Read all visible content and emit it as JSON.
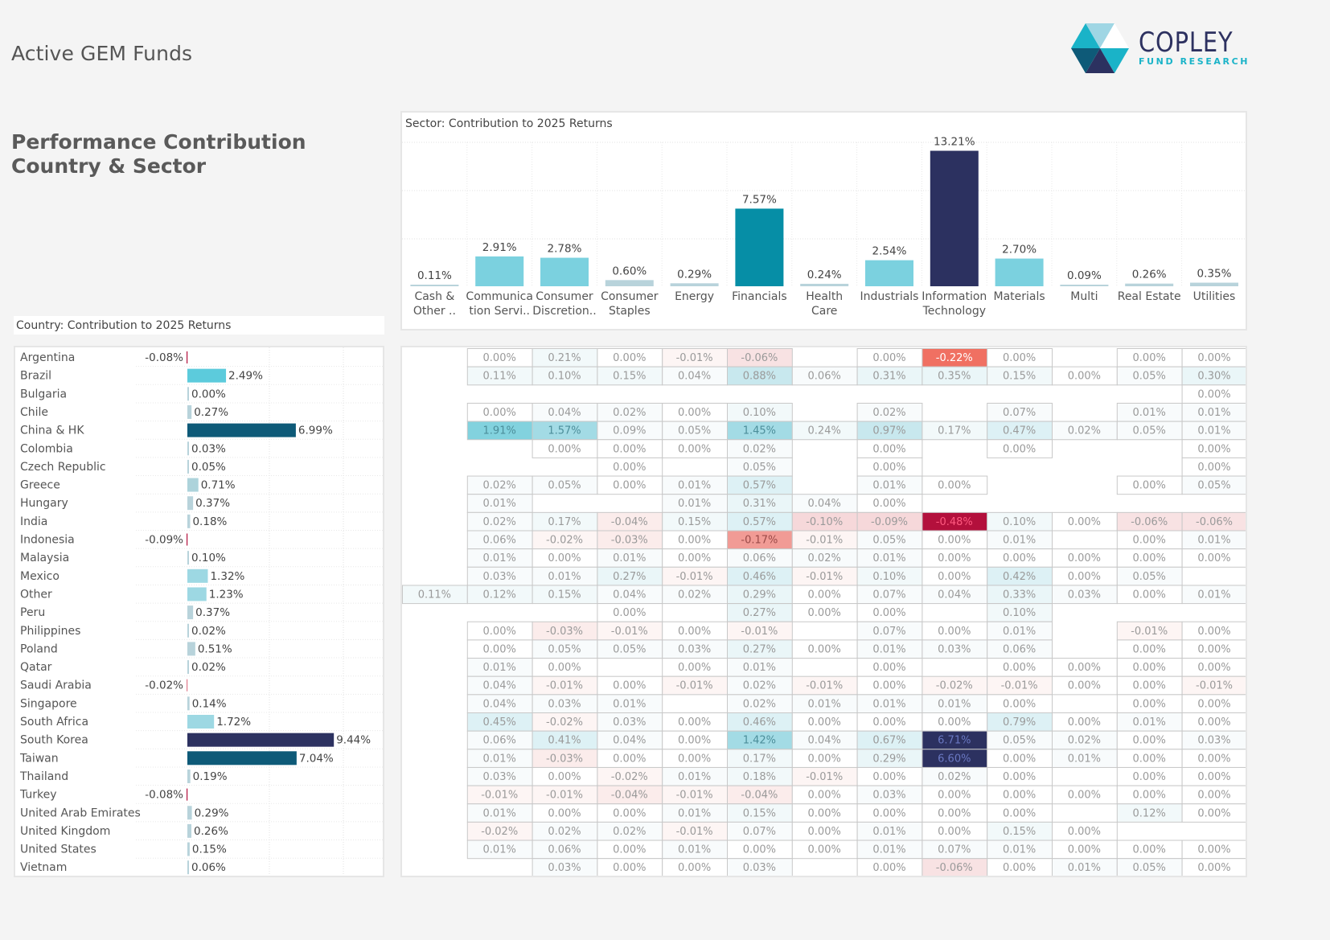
{
  "header": {
    "app_title": "Active GEM Funds",
    "heading_line1": "Performance Contribution",
    "heading_line2": "Country & Sector",
    "logo_name": "COPLEY",
    "logo_tagline": "FUND RESEARCH"
  },
  "colors": {
    "dark_navy": "#2c3160",
    "teal_dark": "#0e5a78",
    "teal": "#068ea6",
    "cyan": "#5ccbdc",
    "light_cyan": "#7bd1df",
    "pale": "#b8d3db",
    "negative": "#b3103c",
    "grid": "#dddddd"
  },
  "chart_data": [
    {
      "type": "bar",
      "title": "Sector:  Contribution to 2025 Returns",
      "categories": [
        "Cash & Other ..",
        "Communica tion Servi..",
        "Consumer Discretion..",
        "Consumer Staples",
        "Energy",
        "Financials",
        "Health Care",
        "Industrials",
        "Information Technology",
        "Materials",
        "Multi",
        "Real Estate",
        "Utilities"
      ],
      "category_lines": [
        [
          "Cash &",
          "Other .."
        ],
        [
          "Communica",
          "tion Servi.."
        ],
        [
          "Consumer",
          "Discretion.."
        ],
        [
          "Consumer",
          "Staples"
        ],
        [
          "Energy"
        ],
        [
          "Financials"
        ],
        [
          "Health",
          "Care"
        ],
        [
          "Industrials"
        ],
        [
          "Information",
          "Technology"
        ],
        [
          "Materials"
        ],
        [
          "Multi"
        ],
        [
          "Real Estate"
        ],
        [
          "Utilities"
        ]
      ],
      "values": [
        0.11,
        2.91,
        2.78,
        0.6,
        0.29,
        7.57,
        0.24,
        2.54,
        13.21,
        2.7,
        0.09,
        0.26,
        0.35
      ],
      "labels": [
        "0.11%",
        "2.91%",
        "2.78%",
        "0.60%",
        "0.29%",
        "7.57%",
        "0.24%",
        "2.54%",
        "13.21%",
        "2.70%",
        "0.09%",
        "0.26%",
        "0.35%"
      ],
      "ylim": [
        0,
        15
      ],
      "unit": "%",
      "grid": true,
      "xlabel": "",
      "ylabel": ""
    },
    {
      "type": "bar",
      "orientation": "horizontal",
      "title": "Country:  Contribution to 2025 Returns",
      "categories": [
        "Argentina",
        "Brazil",
        "Bulgaria",
        "Chile",
        "China & HK",
        "Colombia",
        "Czech Republic",
        "Greece",
        "Hungary",
        "India",
        "Indonesia",
        "Malaysia",
        "Mexico",
        "Other",
        "Peru",
        "Philippines",
        "Poland",
        "Qatar",
        "Saudi Arabia",
        "Singapore",
        "South Africa",
        "South Korea",
        "Taiwan",
        "Thailand",
        "Turkey",
        "United Arab Emirates",
        "United Kingdom",
        "United States",
        "Vietnam"
      ],
      "values": [
        -0.08,
        2.49,
        0.0,
        0.27,
        6.99,
        0.03,
        0.05,
        0.71,
        0.37,
        0.18,
        -0.09,
        0.1,
        1.32,
        1.23,
        0.37,
        0.02,
        0.51,
        0.02,
        -0.02,
        0.14,
        1.72,
        9.44,
        7.04,
        0.19,
        -0.08,
        0.29,
        0.26,
        0.15,
        0.06
      ],
      "labels": [
        "-0.08%",
        "2.49%",
        "0.00%",
        "0.27%",
        "6.99%",
        "0.03%",
        "0.05%",
        "0.71%",
        "0.37%",
        "0.18%",
        "-0.09%",
        "0.10%",
        "1.32%",
        "1.23%",
        "0.37%",
        "0.02%",
        "0.51%",
        "0.02%",
        "-0.02%",
        "0.14%",
        "1.72%",
        "9.44%",
        "7.04%",
        "0.19%",
        "-0.08%",
        "0.29%",
        "0.26%",
        "0.15%",
        "0.06%"
      ],
      "xlim": [
        -1,
        10
      ],
      "unit": "%",
      "grid": true
    },
    {
      "type": "heatmap",
      "title": "Country x Sector contribution",
      "rows": [
        "Argentina",
        "Brazil",
        "Bulgaria",
        "Chile",
        "China & HK",
        "Colombia",
        "Czech Republic",
        "Greece",
        "Hungary",
        "India",
        "Indonesia",
        "Malaysia",
        "Mexico",
        "Other",
        "Peru",
        "Philippines",
        "Poland",
        "Qatar",
        "Saudi Arabia",
        "Singapore",
        "South Africa",
        "South Korea",
        "Taiwan",
        "Thailand",
        "Turkey",
        "United Arab Emirates",
        "United Kingdom",
        "United States",
        "Vietnam"
      ],
      "columns": [
        "Cash & Other",
        "Communication Services",
        "Consumer Discretionary",
        "Consumer Staples",
        "Energy",
        "Financials",
        "Health Care",
        "Industrials",
        "Information Technology",
        "Materials",
        "Multi",
        "Real Estate",
        "Utilities"
      ],
      "values": [
        [
          null,
          0.0,
          0.21,
          0.0,
          -0.01,
          -0.06,
          null,
          0.0,
          -0.22,
          0.0,
          null,
          0.0,
          0.0
        ],
        [
          null,
          0.11,
          0.1,
          0.15,
          0.04,
          0.88,
          0.06,
          0.31,
          0.35,
          0.15,
          0.0,
          0.05,
          0.3
        ],
        [
          null,
          null,
          null,
          null,
          null,
          null,
          null,
          null,
          null,
          null,
          null,
          null,
          0.0
        ],
        [
          null,
          0.0,
          0.04,
          0.02,
          0.0,
          0.1,
          null,
          0.02,
          null,
          0.07,
          null,
          0.01,
          0.01
        ],
        [
          null,
          1.91,
          1.57,
          0.09,
          0.05,
          1.45,
          0.24,
          0.97,
          0.17,
          0.47,
          0.02,
          0.05,
          0.01
        ],
        [
          null,
          null,
          0.0,
          0.0,
          0.0,
          0.02,
          null,
          0.0,
          null,
          0.0,
          null,
          null,
          0.0
        ],
        [
          null,
          null,
          null,
          0.0,
          null,
          0.05,
          null,
          0.0,
          null,
          null,
          null,
          null,
          0.0
        ],
        [
          null,
          0.02,
          0.05,
          0.0,
          0.01,
          0.57,
          null,
          0.01,
          0.0,
          null,
          null,
          0.0,
          0.05
        ],
        [
          null,
          0.01,
          null,
          null,
          0.01,
          0.31,
          0.04,
          0.0,
          null,
          null,
          null,
          null,
          null
        ],
        [
          null,
          0.02,
          0.17,
          -0.04,
          0.15,
          0.57,
          -0.1,
          -0.09,
          -0.48,
          0.1,
          0.0,
          -0.06,
          -0.06
        ],
        [
          null,
          0.06,
          -0.02,
          -0.03,
          0.0,
          -0.17,
          -0.01,
          0.05,
          0.0,
          0.01,
          null,
          0.0,
          0.01
        ],
        [
          null,
          0.01,
          0.0,
          0.01,
          0.0,
          0.06,
          0.02,
          0.01,
          0.0,
          0.0,
          0.0,
          0.0,
          0.0
        ],
        [
          null,
          0.03,
          0.01,
          0.27,
          -0.01,
          0.46,
          -0.01,
          0.1,
          0.0,
          0.42,
          0.0,
          0.05,
          null
        ],
        [
          0.11,
          0.12,
          0.15,
          0.04,
          0.02,
          0.29,
          0.0,
          0.07,
          0.04,
          0.33,
          0.03,
          0.0,
          0.01
        ],
        [
          null,
          null,
          null,
          0.0,
          null,
          0.27,
          0.0,
          0.0,
          null,
          0.1,
          null,
          null,
          null
        ],
        [
          null,
          0.0,
          -0.03,
          -0.01,
          0.0,
          -0.01,
          null,
          0.07,
          0.0,
          0.01,
          null,
          -0.01,
          0.0
        ],
        [
          null,
          0.0,
          0.05,
          0.05,
          0.03,
          0.27,
          0.0,
          0.01,
          0.03,
          0.06,
          null,
          0.0,
          0.0
        ],
        [
          null,
          0.01,
          0.0,
          null,
          0.0,
          0.01,
          null,
          0.0,
          null,
          0.0,
          0.0,
          0.0,
          0.0
        ],
        [
          null,
          0.04,
          -0.01,
          0.0,
          -0.01,
          0.02,
          -0.01,
          0.0,
          -0.02,
          -0.01,
          0.0,
          0.0,
          -0.01
        ],
        [
          null,
          0.04,
          0.03,
          0.01,
          null,
          0.02,
          0.01,
          0.01,
          0.01,
          0.0,
          null,
          0.0,
          0.0
        ],
        [
          null,
          0.45,
          -0.02,
          0.03,
          0.0,
          0.46,
          0.0,
          0.0,
          0.0,
          0.79,
          0.0,
          0.01,
          0.0
        ],
        [
          null,
          0.06,
          0.41,
          0.04,
          0.0,
          1.42,
          0.04,
          0.67,
          6.71,
          0.05,
          0.02,
          0.0,
          0.03
        ],
        [
          null,
          0.01,
          -0.03,
          0.0,
          0.0,
          0.17,
          0.0,
          0.29,
          6.6,
          0.0,
          0.01,
          0.0,
          0.0
        ],
        [
          null,
          0.03,
          0.0,
          -0.02,
          0.01,
          0.18,
          -0.01,
          0.0,
          0.02,
          0.0,
          null,
          0.0,
          0.0
        ],
        [
          null,
          -0.01,
          -0.01,
          -0.04,
          -0.01,
          -0.04,
          0.0,
          0.03,
          0.0,
          0.0,
          0.0,
          0.0,
          0.0
        ],
        [
          null,
          0.01,
          0.0,
          0.0,
          0.01,
          0.15,
          0.0,
          0.0,
          0.0,
          0.0,
          null,
          0.12,
          0.0
        ],
        [
          null,
          -0.02,
          0.02,
          0.02,
          -0.01,
          0.07,
          0.0,
          0.01,
          0.0,
          0.15,
          0.0,
          null,
          null
        ],
        [
          null,
          0.01,
          0.06,
          0.0,
          0.01,
          0.0,
          0.0,
          0.01,
          0.07,
          0.01,
          0.0,
          0.0,
          0.0
        ],
        [
          null,
          null,
          0.03,
          0.0,
          0.0,
          0.03,
          null,
          0.0,
          -0.06,
          0.0,
          0.01,
          0.05,
          0.0
        ]
      ],
      "unit": "%"
    }
  ]
}
